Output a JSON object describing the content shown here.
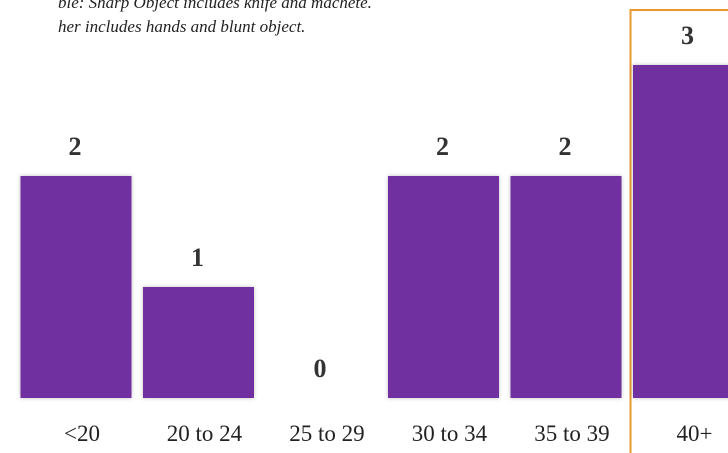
{
  "notes": {
    "line1": "ble: Sharp Object includes knife and machete.",
    "line2": "her includes hands and blunt object."
  },
  "colors": {
    "bar": "#7030a0",
    "highlight": "#e69a2e",
    "label": "#333333"
  },
  "chart_data": {
    "type": "bar",
    "categories": [
      "<20",
      "20 to 24",
      "25 to 29",
      "30 to 34",
      "35 to 39",
      "40+"
    ],
    "values": [
      2,
      1,
      0,
      2,
      2,
      3
    ],
    "ylim": [
      0,
      3
    ],
    "grid": false,
    "legend": "none",
    "highlighted_category": "40+"
  }
}
